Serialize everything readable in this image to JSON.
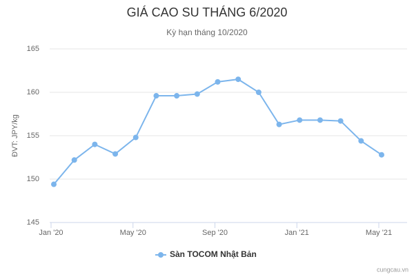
{
  "chart_data": {
    "type": "line",
    "title": "GIÁ CAO SU THÁNG 6/2020",
    "subtitle": "Kỳ hạn tháng 10/2020",
    "y_label": "ĐVT: JPY/kg",
    "credit": "cungcau.vn",
    "categories": [
      "Jan '20",
      null,
      null,
      null,
      "May '20",
      null,
      null,
      null,
      "Sep '20",
      null,
      null,
      null,
      "Jan '21",
      null,
      null,
      null,
      "May '21"
    ],
    "series": [
      {
        "name": "Sàn TOCOM Nhật Bản",
        "color": "#7cb5ec",
        "values": [
          149.4,
          152.2,
          154.0,
          152.9,
          154.8,
          159.6,
          159.6,
          159.8,
          161.2,
          161.5,
          160.0,
          156.3,
          156.8,
          156.8,
          156.7,
          154.4,
          152.8
        ]
      }
    ],
    "ylim": [
      145,
      165
    ],
    "yticks": [
      145,
      150,
      155,
      160,
      165
    ],
    "grid": true
  }
}
